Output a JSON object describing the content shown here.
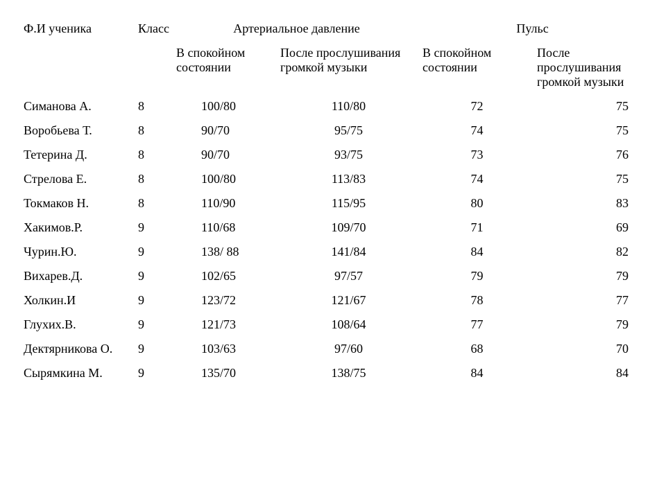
{
  "header": {
    "col_name": "Ф.И ученика",
    "col_class": "Класс",
    "col_bp_group": "Артериальное давление",
    "col_pulse_group": "Пульс",
    "sub_calm": "В  спокойном состоянии",
    "sub_after": "После прослушивания громкой музыки"
  },
  "rows": [
    {
      "name": "Симанова А.",
      "class": "8",
      "bp1": "100/80",
      "bp2": "110/80",
      "pu1": "72",
      "pu2": "75"
    },
    {
      "name": "Воробьева Т.",
      "class": "8",
      "bp1": "90/70",
      "bp2": "95/75",
      "pu1": "74",
      "pu2": "75"
    },
    {
      "name": "Тетерина Д.",
      "class": "8",
      "bp1": "90/70",
      "bp2": "93/75",
      "pu1": "73",
      "pu2": "76"
    },
    {
      "name": "Стрелова Е.",
      "class": "8",
      "bp1": "100/80",
      "bp2": "113/83",
      "pu1": "74",
      "pu2": "75"
    },
    {
      "name": "Токмаков Н.",
      "class": "8",
      "bp1": "110/90",
      "bp2": "115/95",
      "pu1": "80",
      "pu2": "83"
    },
    {
      "name": "Хакимов.Р.",
      "class": "9",
      "bp1": "110/68",
      "bp2": "109/70",
      "pu1": "71",
      "pu2": "69"
    },
    {
      "name": "Чурин.Ю.",
      "class": "9",
      "bp1": "138/ 88",
      "bp2": "141/84",
      "pu1": "84",
      "pu2": "82"
    },
    {
      "name": "Вихарев.Д.",
      "class": "9",
      "bp1": "102/65",
      "bp2": "97/57",
      "pu1": "79",
      "pu2": "79"
    },
    {
      "name": "Холкин.И",
      "class": "9",
      "bp1": "123/72",
      "bp2": "121/67",
      "pu1": "78",
      "pu2": "77"
    },
    {
      "name": "Глухих.В.",
      "class": "9",
      "bp1": "121/73",
      "bp2": "108/64",
      "pu1": "77",
      "pu2": "79"
    },
    {
      "name": "Дектярникова О.",
      "class": "9",
      "bp1": "103/63",
      "bp2": "97/60",
      "pu1": "68",
      "pu2": "70"
    },
    {
      "name": "Сырямкина М.",
      "class": "9",
      "bp1": "135/70",
      "bp2": "138/75",
      "pu1": "84",
      "pu2": "84"
    }
  ],
  "style": {
    "font_family": "Times New Roman",
    "font_size_pt": 14,
    "text_color": "#000000",
    "background_color": "#ffffff"
  }
}
